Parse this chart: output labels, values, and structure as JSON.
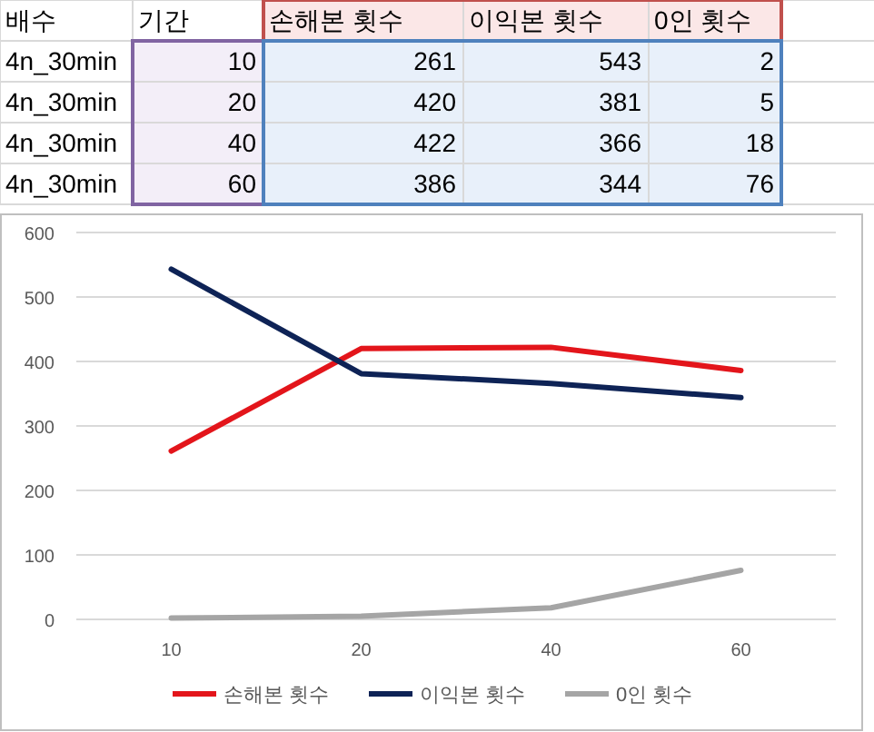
{
  "chart_data": [
    {
      "type": "other",
      "annotations": [
        "배수",
        "기간",
        "손해본 횟수",
        "이익본 횟수",
        "0인 횟수",
        "4n_30min",
        "10",
        "261",
        "543",
        "2",
        "4n_30min",
        "20",
        "420",
        "381",
        "5",
        "4n_30min",
        "40",
        "422",
        "366",
        "18",
        "4n_30min",
        "60",
        "386",
        "344",
        "76"
      ]
    },
    {
      "type": "line",
      "categories": [
        "10",
        "20",
        "40",
        "60"
      ],
      "series": [
        {
          "name": "손해본 횟수",
          "color": "#e3151b",
          "values": [
            261,
            420,
            422,
            386
          ]
        },
        {
          "name": "이익본 횟수",
          "color": "#0e2356",
          "values": [
            543,
            381,
            366,
            344
          ]
        },
        {
          "name": "0인 횟수",
          "color": "#a5a5a5",
          "values": [
            2,
            5,
            18,
            76
          ]
        }
      ],
      "ylim": [
        0,
        600
      ],
      "yticks": [
        0,
        100,
        200,
        300,
        400,
        500,
        600
      ],
      "grid": "y",
      "legend": "bottom",
      "marker": "none",
      "line_style": "solid"
    }
  ]
}
